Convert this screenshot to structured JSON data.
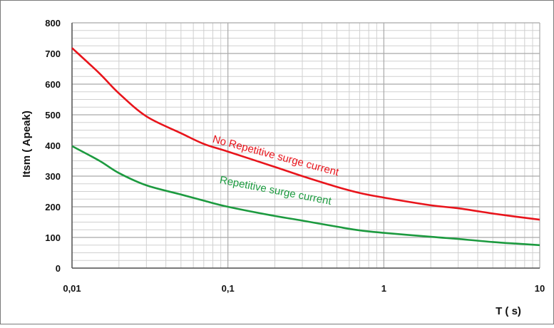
{
  "chart_data": {
    "type": "line",
    "title": "",
    "xlabel": "T ( s)",
    "ylabel": "Itsm ( Apeak)",
    "x_scale": "log",
    "xlim": [
      0.01,
      10
    ],
    "ylim": [
      0,
      800
    ],
    "x_ticks": [
      0.01,
      0.1,
      1,
      10
    ],
    "x_tick_labels": [
      "0,01",
      "0,1",
      "1",
      "10"
    ],
    "y_ticks": [
      0,
      100,
      200,
      300,
      400,
      500,
      600,
      700,
      800
    ],
    "y_tick_labels": [
      "0",
      "100",
      "200",
      "300",
      "400",
      "500",
      "600",
      "700",
      "800"
    ],
    "grid": true,
    "legend": "none",
    "series": [
      {
        "name": "No Repetitive surge current",
        "color": "#e8141b",
        "x": [
          0.01,
          0.015,
          0.02,
          0.03,
          0.05,
          0.07,
          0.1,
          0.2,
          0.3,
          0.5,
          0.7,
          1,
          2,
          3,
          5,
          7,
          10
        ],
        "y": [
          718,
          635,
          570,
          495,
          440,
          405,
          380,
          330,
          300,
          265,
          245,
          230,
          205,
          195,
          178,
          168,
          158
        ]
      },
      {
        "name": "Repetitive surge current",
        "color": "#1c9a3f",
        "x": [
          0.01,
          0.015,
          0.02,
          0.03,
          0.05,
          0.07,
          0.1,
          0.2,
          0.3,
          0.5,
          0.7,
          1,
          2,
          3,
          5,
          7,
          10
        ],
        "y": [
          398,
          350,
          310,
          270,
          240,
          220,
          200,
          170,
          155,
          135,
          123,
          115,
          102,
          95,
          85,
          80,
          75
        ]
      }
    ],
    "annotations": [
      {
        "text": "No Repetitive surge current",
        "color": "#e8141b",
        "x": 0.2,
        "y": 356,
        "angle_deg": 15
      },
      {
        "text": "Repetitive surge current",
        "color": "#1c9a3f",
        "x": 0.2,
        "y": 242,
        "angle_deg": 11
      }
    ],
    "colors": {
      "grid_major": "#a9a9a9",
      "grid_minor": "#d0d0d0",
      "axis": "#555555",
      "border": "#7a7a7a"
    }
  }
}
